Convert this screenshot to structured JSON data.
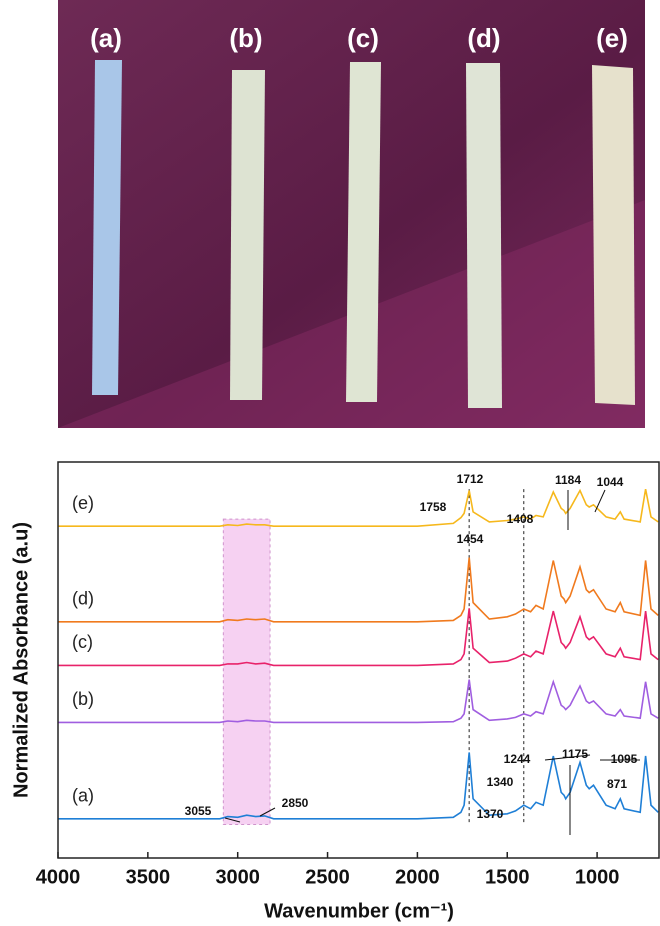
{
  "photo": {
    "labels": [
      "(a)",
      "(b)",
      "(c)",
      "(d)",
      "(e)"
    ]
  },
  "chart_data": {
    "type": "line",
    "xlabel": "Wavenumber (cm⁻¹)",
    "ylabel": "Normalized Absorbance (a.u)",
    "xlim": [
      4000,
      650
    ],
    "xticks": [
      4000,
      3500,
      3000,
      2500,
      2000,
      1500,
      1000
    ],
    "ylim": [
      -0.45,
      5.1
    ],
    "highlight": [
      3080,
      2820
    ],
    "highlight_color": "#f5c6f0",
    "reference_lines": [
      1712,
      1408
    ],
    "annotations": [
      "1712",
      "1758",
      "1454",
      "1408",
      "1184",
      "1044",
      "1244",
      "1175",
      "1095",
      "1340",
      "1370",
      "871",
      "3055",
      "2850"
    ],
    "x": [
      4000,
      3500,
      3100,
      3055,
      3000,
      2950,
      2900,
      2850,
      2800,
      2500,
      2000,
      1800,
      1758,
      1740,
      1712,
      1690,
      1600,
      1500,
      1454,
      1408,
      1370,
      1340,
      1300,
      1244,
      1200,
      1184,
      1175,
      1150,
      1095,
      1060,
      1044,
      1020,
      950,
      900,
      871,
      850,
      760,
      730,
      700,
      660
    ],
    "series": [
      {
        "name": "(a)",
        "color": "#1f7fd6",
        "values": [
          0.1,
          0.1,
          0.1,
          0.13,
          0.12,
          0.15,
          0.13,
          0.14,
          0.1,
          0.1,
          0.1,
          0.12,
          0.19,
          0.29,
          1.03,
          0.38,
          0.15,
          0.17,
          0.21,
          0.29,
          0.24,
          0.33,
          0.29,
          0.98,
          0.47,
          0.43,
          0.38,
          0.47,
          0.89,
          0.57,
          0.52,
          0.57,
          0.29,
          0.24,
          0.38,
          0.24,
          0.19,
          0.98,
          0.29,
          0.19
        ]
      },
      {
        "name": "(b)",
        "color": "#a05ee0",
        "values": [
          1.45,
          1.45,
          1.45,
          1.47,
          1.46,
          1.48,
          1.47,
          1.47,
          1.45,
          1.45,
          1.45,
          1.46,
          1.51,
          1.57,
          2.05,
          1.63,
          1.48,
          1.5,
          1.52,
          1.57,
          1.54,
          1.6,
          1.57,
          2.02,
          1.69,
          1.66,
          1.63,
          1.69,
          1.96,
          1.75,
          1.72,
          1.75,
          1.57,
          1.54,
          1.63,
          1.54,
          1.51,
          2.02,
          1.57,
          1.51
        ]
      },
      {
        "name": "(c)",
        "color": "#e8226a",
        "values": [
          2.25,
          2.25,
          2.25,
          2.27,
          2.27,
          2.29,
          2.27,
          2.28,
          2.25,
          2.25,
          2.25,
          2.27,
          2.33,
          2.41,
          3.05,
          2.49,
          2.29,
          2.31,
          2.35,
          2.41,
          2.37,
          2.45,
          2.41,
          3.01,
          2.57,
          2.53,
          2.49,
          2.57,
          2.93,
          2.65,
          2.61,
          2.65,
          2.41,
          2.37,
          2.49,
          2.37,
          2.33,
          3.01,
          2.41,
          2.33
        ]
      },
      {
        "name": "(d)",
        "color": "#f07a1e",
        "values": [
          2.86,
          2.86,
          2.86,
          2.89,
          2.88,
          2.9,
          2.89,
          2.9,
          2.86,
          2.86,
          2.86,
          2.88,
          2.95,
          3.04,
          3.76,
          3.13,
          2.9,
          2.93,
          2.97,
          3.04,
          3.0,
          3.09,
          3.04,
          3.72,
          3.22,
          3.18,
          3.13,
          3.22,
          3.63,
          3.31,
          3.27,
          3.31,
          3.04,
          3.0,
          3.13,
          3.0,
          2.95,
          3.72,
          3.04,
          2.95
        ]
      },
      {
        "name": "(e)",
        "color": "#f6b81c",
        "values": [
          4.2,
          4.2,
          4.2,
          4.22,
          4.21,
          4.23,
          4.22,
          4.22,
          4.2,
          4.2,
          4.2,
          4.24,
          4.32,
          4.38,
          4.7,
          4.4,
          4.26,
          4.28,
          4.3,
          4.33,
          4.3,
          4.35,
          4.33,
          4.68,
          4.45,
          4.42,
          4.38,
          4.45,
          4.7,
          4.5,
          4.47,
          4.5,
          4.33,
          4.3,
          4.4,
          4.3,
          4.26,
          4.72,
          4.33,
          4.26
        ]
      }
    ]
  }
}
